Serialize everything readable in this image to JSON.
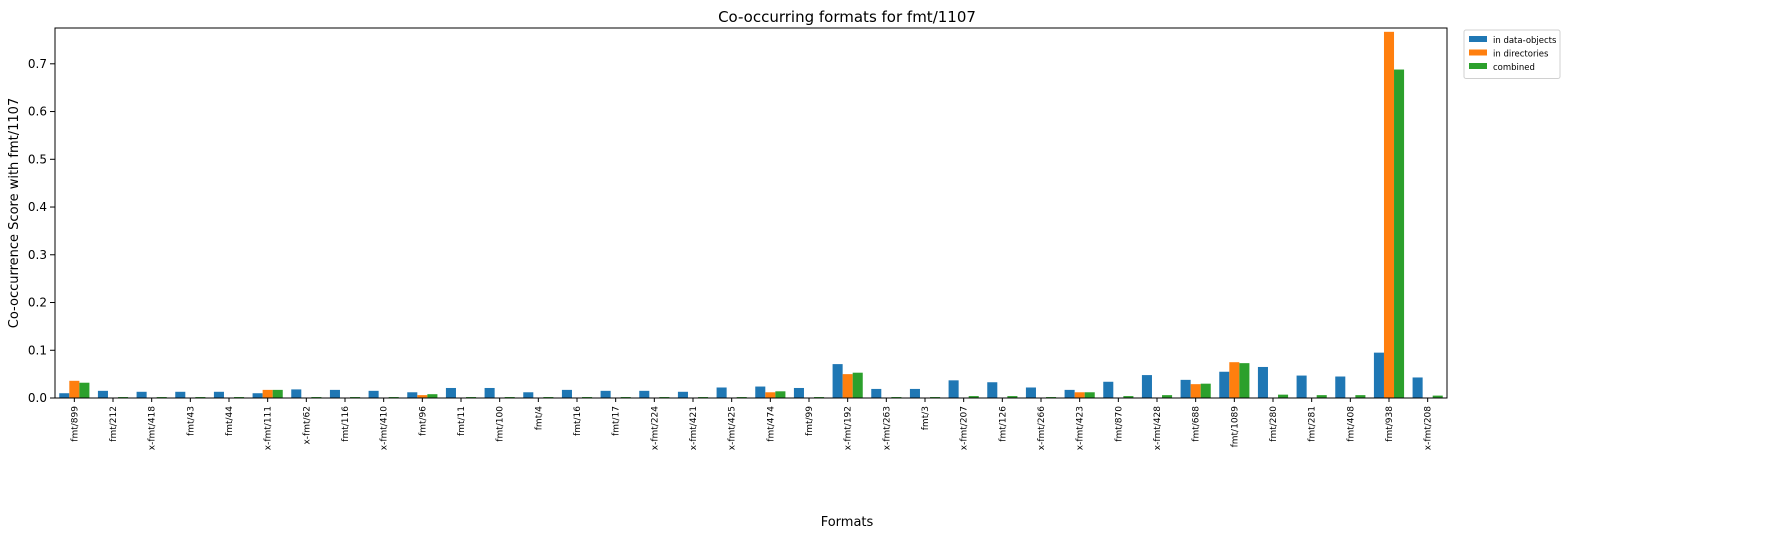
{
  "chart_data": {
    "type": "bar",
    "title": "Co-occurring formats for fmt/1107",
    "xlabel": "Formats",
    "ylabel": "Co-occurrence Score with fmt/1107",
    "ylim": [
      0,
      0.775
    ],
    "yticks": [
      0.0,
      0.1,
      0.2,
      0.3,
      0.4,
      0.5,
      0.6,
      0.7
    ],
    "ytick_labels": [
      "0.0",
      "0.1",
      "0.2",
      "0.3",
      "0.4",
      "0.5",
      "0.6",
      "0.7"
    ],
    "grid": false,
    "legend_position": "upper-right-outside",
    "categories": [
      "fmt/899",
      "fmt/212",
      "x-fmt/418",
      "fmt/43",
      "fmt/44",
      "x-fmt/111",
      "x-fmt/62",
      "fmt/116",
      "x-fmt/410",
      "fmt/96",
      "fmt/11",
      "fmt/100",
      "fmt/4",
      "fmt/16",
      "fmt/17",
      "x-fmt/224",
      "x-fmt/421",
      "x-fmt/425",
      "fmt/474",
      "fmt/99",
      "x-fmt/192",
      "x-fmt/263",
      "fmt/3",
      "x-fmt/207",
      "fmt/126",
      "x-fmt/266",
      "x-fmt/423",
      "fmt/870",
      "x-fmt/428",
      "fmt/688",
      "fmt/1089",
      "fmt/280",
      "fmt/281",
      "fmt/408",
      "fmt/938",
      "x-fmt/208"
    ],
    "series": [
      {
        "name": "in data-objects",
        "color": "#1f77b4",
        "values": [
          0.01,
          0.015,
          0.013,
          0.013,
          0.013,
          0.01,
          0.018,
          0.017,
          0.015,
          0.012,
          0.021,
          0.021,
          0.012,
          0.017,
          0.015,
          0.015,
          0.013,
          0.022,
          0.024,
          0.021,
          0.071,
          0.019,
          0.019,
          0.037,
          0.033,
          0.022,
          0.017,
          0.034,
          0.048,
          0.038,
          0.055,
          0.065,
          0.047,
          0.045,
          0.095,
          0.043
        ]
      },
      {
        "name": "in directories",
        "color": "#ff7f0e",
        "values": [
          0.036,
          0.0,
          0.0,
          0.0,
          0.0,
          0.017,
          0.0,
          0.0,
          0.0,
          0.006,
          0.0,
          0.0,
          0.0,
          0.0,
          0.0,
          0.0,
          0.0,
          0.0,
          0.012,
          0.0,
          0.05,
          0.0,
          0.0,
          0.0,
          0.0,
          0.0,
          0.012,
          0.0,
          0.0,
          0.029,
          0.075,
          0.0,
          0.0,
          0.0,
          0.767,
          0.0
        ]
      },
      {
        "name": "combined",
        "color": "#2ca02c",
        "values": [
          0.032,
          0.002,
          0.002,
          0.002,
          0.002,
          0.017,
          0.002,
          0.002,
          0.002,
          0.008,
          0.002,
          0.002,
          0.002,
          0.002,
          0.002,
          0.002,
          0.002,
          0.002,
          0.014,
          0.002,
          0.053,
          0.002,
          0.002,
          0.004,
          0.004,
          0.002,
          0.012,
          0.004,
          0.006,
          0.03,
          0.073,
          0.007,
          0.006,
          0.006,
          0.688,
          0.005
        ]
      }
    ]
  }
}
